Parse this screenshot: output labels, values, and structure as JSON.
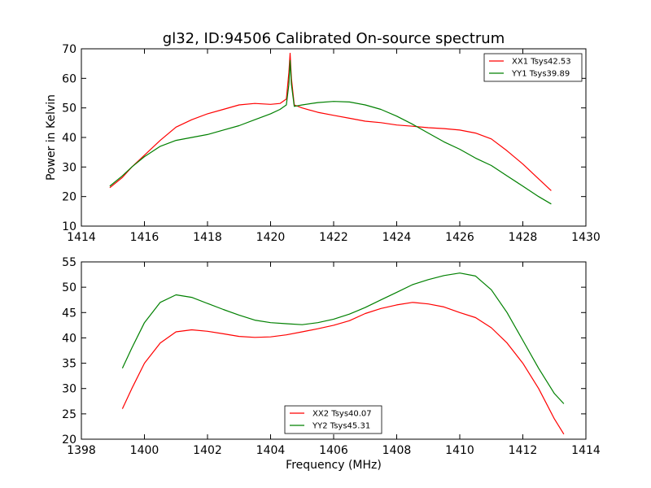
{
  "figure": {
    "title": "gl32, ID:94506 Calibrated On-source spectrum",
    "xlabel": "Frequency (MHz)",
    "ylabel": "Power in Kelvin"
  },
  "colors": {
    "XX": "#ff0000",
    "YY": "#008000"
  },
  "chart_data": [
    {
      "type": "line",
      "title": "gl32, ID:94506 Calibrated On-source spectrum",
      "xlabel": "",
      "ylabel": "Power in Kelvin",
      "xlim": [
        1414,
        1430
      ],
      "ylim": [
        10,
        70
      ],
      "xticks": [
        1414,
        1416,
        1418,
        1420,
        1422,
        1424,
        1426,
        1428,
        1430
      ],
      "yticks": [
        10,
        20,
        30,
        40,
        50,
        60,
        70
      ],
      "grid": false,
      "legend_position": "top-right",
      "series": [
        {
          "name": "XX1 Tsys42.53",
          "color": "#ff0000",
          "x": [
            1414.9,
            1415.3,
            1415.6,
            1416.0,
            1416.5,
            1417.0,
            1417.5,
            1418.0,
            1418.5,
            1419.0,
            1419.5,
            1420.0,
            1420.3,
            1420.5,
            1420.58,
            1420.62,
            1420.66,
            1420.75,
            1421.0,
            1421.5,
            1422.0,
            1422.5,
            1423.0,
            1423.5,
            1424.0,
            1424.5,
            1425.0,
            1425.5,
            1426.0,
            1426.5,
            1427.0,
            1427.5,
            1428.0,
            1428.5,
            1428.9
          ],
          "y": [
            23,
            26.5,
            30,
            34,
            39,
            43.5,
            46,
            48,
            49.5,
            51,
            51.5,
            51.2,
            51.5,
            53,
            62,
            68.5,
            60,
            51,
            50,
            48.5,
            47.5,
            46.5,
            45.5,
            45,
            44.2,
            43.8,
            43.3,
            43,
            42.5,
            41.5,
            39.5,
            35.5,
            31,
            26,
            22
          ]
        },
        {
          "name": "YY1 Tsys39.89",
          "color": "#008000",
          "x": [
            1414.9,
            1415.3,
            1415.6,
            1416.0,
            1416.5,
            1417.0,
            1417.5,
            1418.0,
            1418.5,
            1419.0,
            1419.5,
            1420.0,
            1420.3,
            1420.5,
            1420.58,
            1420.62,
            1420.66,
            1420.75,
            1421.0,
            1421.5,
            1422.0,
            1422.5,
            1423.0,
            1423.5,
            1424.0,
            1424.5,
            1425.0,
            1425.5,
            1426.0,
            1426.5,
            1427.0,
            1427.5,
            1428.0,
            1428.5,
            1428.9
          ],
          "y": [
            23.5,
            27,
            30,
            33.5,
            37,
            39,
            40,
            41,
            42.5,
            44,
            46,
            48,
            49.5,
            51,
            58,
            66,
            58,
            50.5,
            51,
            51.8,
            52.2,
            52,
            51,
            49.5,
            47.2,
            44.5,
            41.5,
            38.5,
            36,
            33,
            30.5,
            27,
            23.5,
            20,
            17.5
          ]
        }
      ]
    },
    {
      "type": "line",
      "title": "",
      "xlabel": "Frequency (MHz)",
      "ylabel": "",
      "xlim": [
        1398,
        1414
      ],
      "ylim": [
        20,
        55
      ],
      "xticks": [
        1398,
        1400,
        1402,
        1404,
        1406,
        1408,
        1410,
        1412,
        1414
      ],
      "yticks": [
        20,
        25,
        30,
        35,
        40,
        45,
        50,
        55
      ],
      "grid": false,
      "legend_position": "lower-center",
      "series": [
        {
          "name": "XX2 Tsys40.07",
          "color": "#ff0000",
          "x": [
            1399.3,
            1399.6,
            1400.0,
            1400.5,
            1401.0,
            1401.5,
            1402.0,
            1402.5,
            1403.0,
            1403.5,
            1404.0,
            1404.5,
            1405.0,
            1405.5,
            1406.0,
            1406.5,
            1407.0,
            1407.5,
            1408.0,
            1408.5,
            1409.0,
            1409.5,
            1410.0,
            1410.5,
            1411.0,
            1411.5,
            1412.0,
            1412.5,
            1413.0,
            1413.3
          ],
          "y": [
            26,
            30,
            35,
            39,
            41.2,
            41.6,
            41.3,
            40.8,
            40.3,
            40.1,
            40.2,
            40.6,
            41.2,
            41.8,
            42.5,
            43.4,
            44.8,
            45.8,
            46.5,
            47,
            46.7,
            46.1,
            45,
            44,
            42,
            39,
            35,
            30,
            24,
            21
          ]
        },
        {
          "name": "YY2 Tsys45.31",
          "color": "#008000",
          "x": [
            1399.3,
            1399.6,
            1400.0,
            1400.5,
            1401.0,
            1401.5,
            1402.0,
            1402.5,
            1403.0,
            1403.5,
            1404.0,
            1404.5,
            1405.0,
            1405.5,
            1406.0,
            1406.5,
            1407.0,
            1407.5,
            1408.0,
            1408.5,
            1409.0,
            1409.5,
            1410.0,
            1410.5,
            1411.0,
            1411.5,
            1412.0,
            1412.5,
            1413.0,
            1413.3
          ],
          "y": [
            34,
            38,
            43,
            47,
            48.5,
            48,
            46.8,
            45.6,
            44.5,
            43.5,
            43,
            42.8,
            42.6,
            43,
            43.7,
            44.7,
            46,
            47.5,
            49,
            50.5,
            51.5,
            52.3,
            52.8,
            52.2,
            49.5,
            45,
            39.5,
            34,
            29,
            27
          ]
        }
      ]
    }
  ]
}
